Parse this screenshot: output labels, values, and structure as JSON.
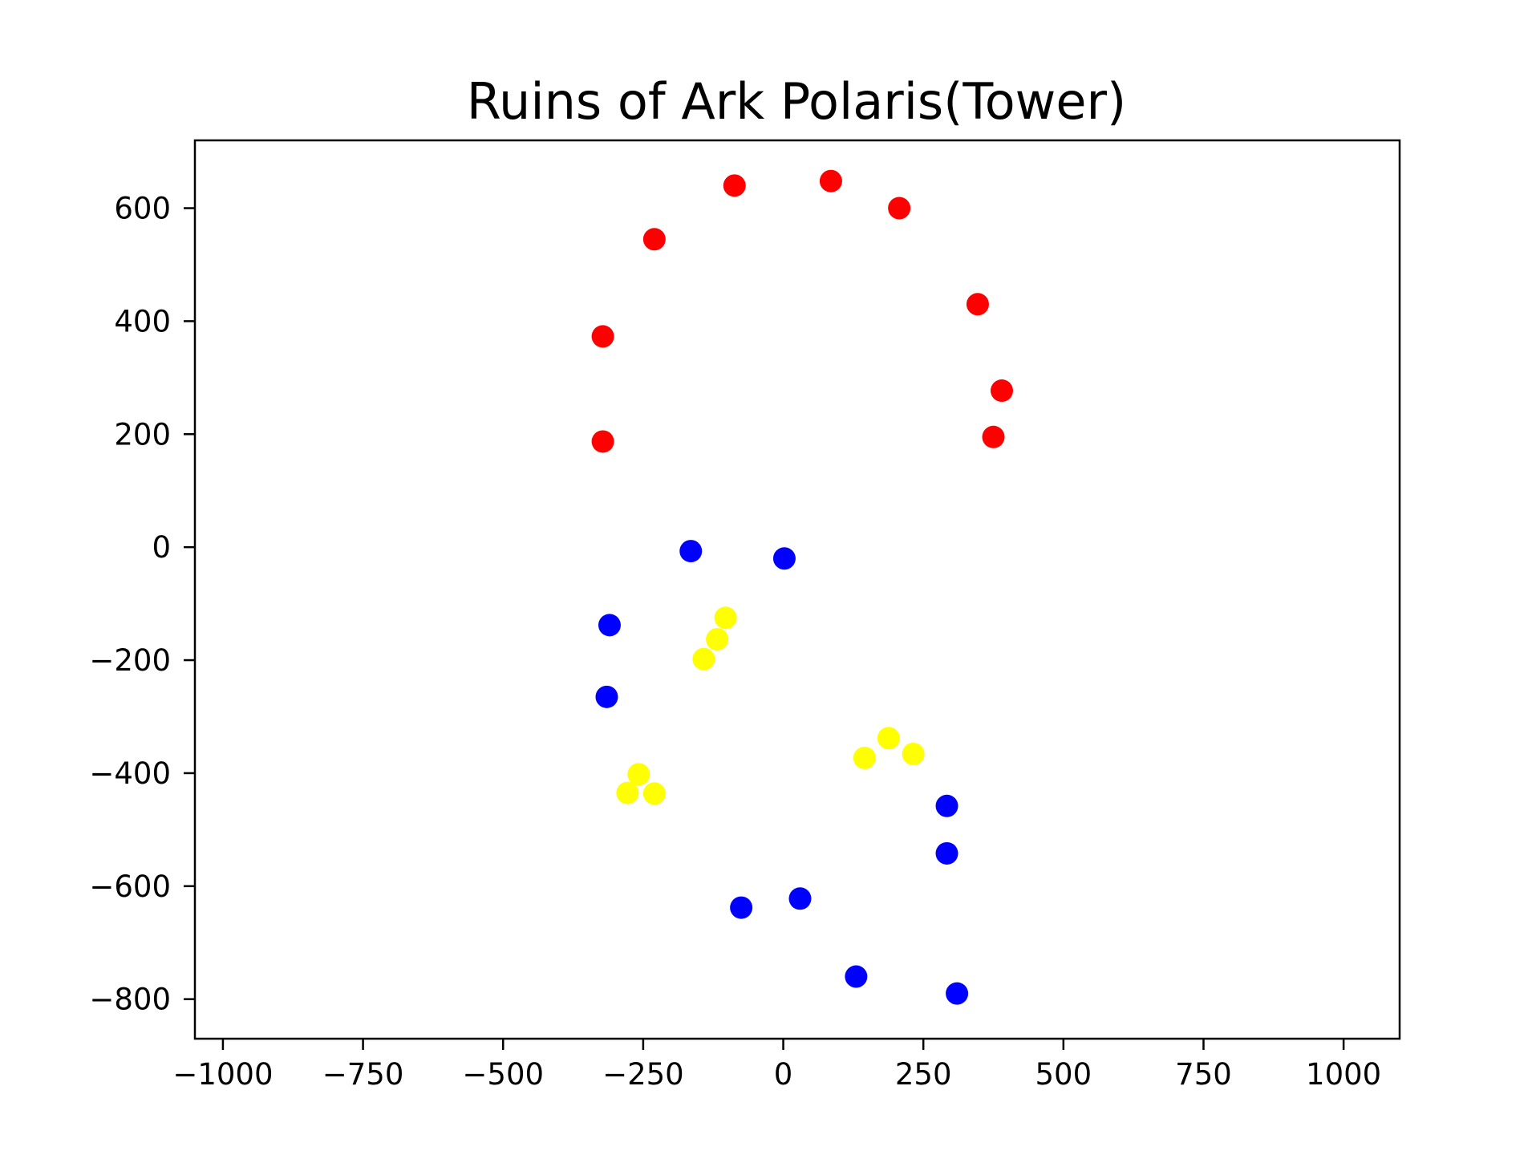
{
  "chart_data": {
    "type": "scatter",
    "title": "Ruins of Ark Polaris(Tower)",
    "xlabel": "",
    "ylabel": "",
    "xlim": [
      -1050,
      1100
    ],
    "ylim": [
      -870,
      720
    ],
    "grid": false,
    "x_ticks": [
      -1000,
      -750,
      -500,
      -250,
      0,
      250,
      500,
      750,
      1000
    ],
    "x_tick_labels": [
      "−1000",
      "−750",
      "−500",
      "−250",
      "0",
      "250",
      "500",
      "750",
      "1000"
    ],
    "y_ticks": [
      -800,
      -600,
      -400,
      -200,
      0,
      200,
      400,
      600
    ],
    "y_tick_labels": [
      "−800",
      "−600",
      "−400",
      "−200",
      "0",
      "200",
      "400",
      "600"
    ],
    "series": [
      {
        "color": "#ff0000",
        "points": [
          [
            -87,
            640
          ],
          [
            85,
            648
          ],
          [
            207,
            600
          ],
          [
            -230,
            545
          ],
          [
            347,
            430
          ],
          [
            -322,
            373
          ],
          [
            390,
            277
          ],
          [
            -322,
            187
          ],
          [
            375,
            195
          ]
        ]
      },
      {
        "color": "#0000ff",
        "points": [
          [
            -165,
            -7
          ],
          [
            2,
            -20
          ],
          [
            -310,
            -138
          ],
          [
            -315,
            -265
          ],
          [
            292,
            -458
          ],
          [
            292,
            -542
          ],
          [
            -75,
            -638
          ],
          [
            30,
            -622
          ],
          [
            130,
            -760
          ],
          [
            310,
            -790
          ]
        ]
      },
      {
        "color": "#ffff00",
        "points": [
          [
            -103,
            -125
          ],
          [
            -118,
            -163
          ],
          [
            -142,
            -198
          ],
          [
            -258,
            -402
          ],
          [
            -278,
            -435
          ],
          [
            -230,
            -436
          ],
          [
            188,
            -338
          ],
          [
            145,
            -373
          ],
          [
            232,
            -366
          ]
        ]
      }
    ]
  }
}
